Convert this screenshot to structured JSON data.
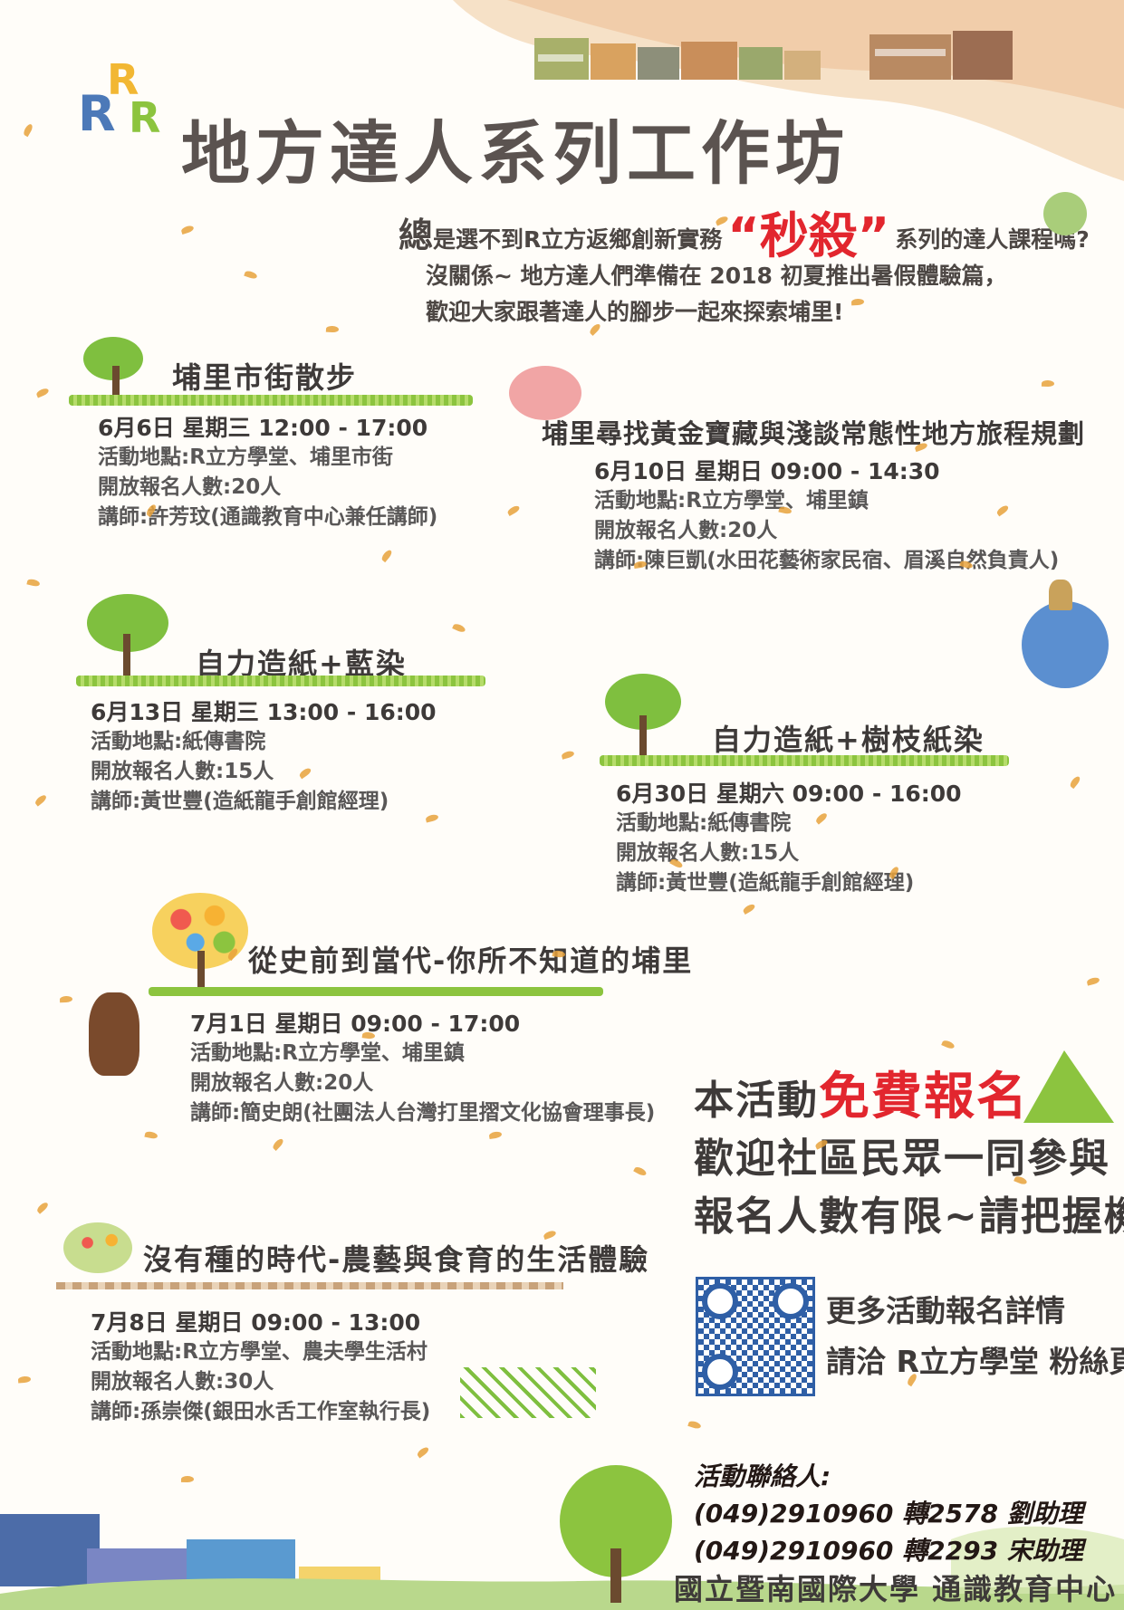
{
  "logo": {
    "text": "RRR"
  },
  "title": "地方達人系列工作坊",
  "intro": {
    "first_char": "總",
    "line1_a": "是選不到R立方返鄉創新實務",
    "highlight": "“秒殺”",
    "line1_b": "系列的達人課程嗎?",
    "line2": "沒關係~ 地方達人們準備在 2018 初夏推出暑假體驗篇，",
    "line3": "歡迎大家跟著達人的腳步一起來探索埔里!"
  },
  "events": [
    {
      "title": "埔里市街散步",
      "date": "6月6日  星期三 12:00 - 17:00",
      "location": "活動地點:R立方學堂、埔里市街",
      "quota": "開放報名人數:20人",
      "instructor": "講師:許芳玟(通識教育中心兼任講師)"
    },
    {
      "title": "埔里尋找黃金寶藏與淺談常態性地方旅程規劃",
      "date": "6月10日  星期日 09:00 - 14:30",
      "location": "活動地點:R立方學堂、埔里鎮",
      "quota": "開放報名人數:20人",
      "instructor": "講師:陳巨凱(水田花藝術家民宿、眉溪自然負責人)"
    },
    {
      "title": "自力造紙+藍染",
      "date": "6月13日  星期三 13:00 - 16:00",
      "location": "活動地點:紙傳書院",
      "quota": "開放報名人數:15人",
      "instructor": "講師:黃世豐(造紙龍手創館經理)"
    },
    {
      "title": "自力造紙+樹枝紙染",
      "date": "6月30日  星期六 09:00 - 16:00",
      "location": "活動地點:紙傳書院",
      "quota": "開放報名人數:15人",
      "instructor": "講師:黃世豐(造紙龍手創館經理)"
    },
    {
      "title": "從史前到當代-你所不知道的埔里",
      "date": "7月1日  星期日 09:00 - 17:00",
      "location": "活動地點:R立方學堂、埔里鎮",
      "quota": "開放報名人數:20人",
      "instructor": "講師:簡史朗(社團法人台灣打里摺文化協會理事長)"
    },
    {
      "title": "沒有種的時代-農藝與食育的生活體驗",
      "date": "7月8日  星期日 09:00 - 13:00",
      "location": "活動地點:R立方學堂、農夫學生活村",
      "quota": "開放報名人數:30人",
      "instructor": "講師:孫崇傑(銀田水舌工作室執行長)"
    }
  ],
  "promo": {
    "line1_a": "本活動",
    "line1_free": "免費報名",
    "line2": "歡迎社區民眾一同參與",
    "line3": "報名人數有限~請把握機會"
  },
  "qr": {
    "line1": "更多活動報名詳情",
    "line2": "請洽 R立方學堂 粉絲頁"
  },
  "contact": {
    "label": "活動聯絡人:",
    "line1": "(049)2910960  轉2578  劉助理",
    "line2": "(049)2910960  轉2293  宋助理"
  },
  "footer": "國立暨南國際大學  通識教育中心",
  "colors": {
    "accent_red": "#e2262e",
    "leaf": "#e8a23c",
    "grass": "#8cc43f",
    "text": "#3e3a39"
  }
}
